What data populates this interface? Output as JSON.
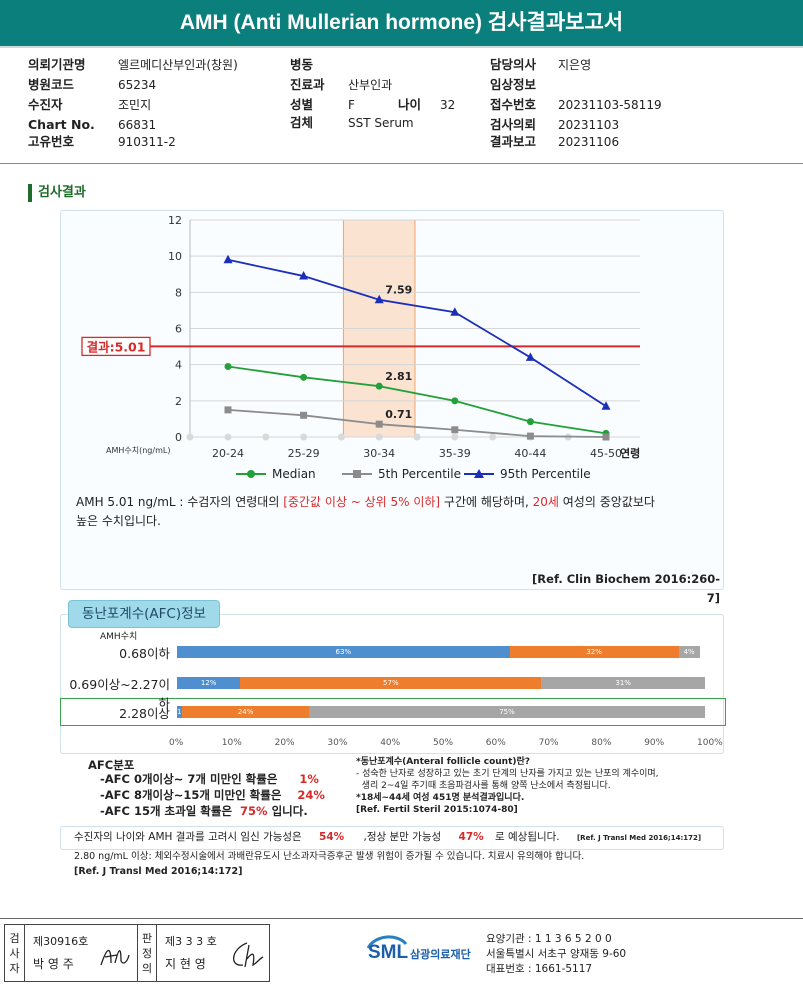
{
  "title": "AMH (Anti Mullerian hormone) 검사결과보고서",
  "info": {
    "col1": [
      {
        "label": "의뢰기관명",
        "value": "엘르메디산부인과(창원)"
      },
      {
        "label": "병원코드",
        "value": "65234"
      },
      {
        "label": "수진자",
        "value": "조민지"
      },
      {
        "label": "Chart No.",
        "value": "66831"
      },
      {
        "label": "고유번호",
        "value": "910311-2"
      }
    ],
    "col2": [
      {
        "label": "병동",
        "value": ""
      },
      {
        "label": "진료과",
        "value": "산부인과"
      },
      {
        "label": "성별",
        "value": "F"
      },
      {
        "label": "검체",
        "value": "SST Serum"
      }
    ],
    "age_label": "나이",
    "age_value": "32",
    "col3": [
      {
        "label": "담당의사",
        "value": "지은영"
      },
      {
        "label": "임상정보",
        "value": ""
      },
      {
        "label": "접수번호",
        "value": "20231103-58119"
      },
      {
        "label": "검사의뢰",
        "value": "20231103"
      },
      {
        "label": "결과보고",
        "value": "20231106"
      }
    ]
  },
  "section_title": "검사결과",
  "chart_data": {
    "type": "line",
    "categories": [
      "20-24",
      "25-29",
      "30-34",
      "35-39",
      "40-44",
      "45-50"
    ],
    "x_axis_suffix": "연령",
    "y_unit_label": "AMH수치(ng/mL)",
    "ylim": [
      0,
      12
    ],
    "y_ticks": [
      "0",
      "2",
      "4",
      "6",
      "8",
      "10",
      "12"
    ],
    "highlight_category": "30-34",
    "result_line": {
      "label": "결과:5.01",
      "value": 5.01,
      "color": "#d62b2b"
    },
    "series": [
      {
        "name": "Median",
        "values": [
          3.9,
          3.3,
          2.81,
          2.0,
          0.85,
          0.2
        ],
        "color": "#22a03a",
        "marker": "circle"
      },
      {
        "name": "5th Percentile",
        "values": [
          1.5,
          1.2,
          0.71,
          0.4,
          0.05,
          0.0
        ],
        "color": "#8c8c8c",
        "marker": "square"
      },
      {
        "name": "95th Percentile",
        "values": [
          9.8,
          8.9,
          7.59,
          6.9,
          4.4,
          1.7
        ],
        "color": "#1c2fb8",
        "marker": "triangle"
      }
    ],
    "data_labels": [
      {
        "series": 0,
        "index": 2,
        "text": "2.81"
      },
      {
        "series": 1,
        "index": 2,
        "text": "0.71"
      },
      {
        "series": 2,
        "index": 2,
        "text": "7.59"
      }
    ],
    "grid": true,
    "legend": "bottom"
  },
  "interpretation": {
    "prefix": "AMH   5.01 ng/mL : 수검자의 연령대의 ",
    "range": "[중간값 이상 ~ 상위 5% 이하]",
    "mid": "  구간에 해당하며, ",
    "age": "20세",
    "suffix": " 여성의 중앙값보다",
    "line2": "높은 수치입니다.",
    "ref": "[Ref. Clin Biochem 2016:260-7]"
  },
  "afc": {
    "tab": "동난포계수(AFC)정보",
    "amh_header": "AMH수치",
    "rows": [
      {
        "label": "0.68이하",
        "segments": [
          {
            "pct": 63,
            "text": "63%",
            "color": "#4f8fd0"
          },
          {
            "pct": 32,
            "text": "32%",
            "color": "#ef7d2e"
          },
          {
            "pct": 4,
            "text": "4%",
            "color": "#a6a6a6"
          }
        ]
      },
      {
        "label": "0.69이상~2.27이하",
        "segments": [
          {
            "pct": 12,
            "text": "12%",
            "color": "#4f8fd0"
          },
          {
            "pct": 57,
            "text": "57%",
            "color": "#ef7d2e"
          },
          {
            "pct": 31,
            "text": "31%",
            "color": "#a6a6a6"
          }
        ]
      },
      {
        "label": "2.28이상",
        "segments": [
          {
            "pct": 1,
            "text": "1%",
            "color": "#4f8fd0"
          },
          {
            "pct": 24,
            "text": "24%",
            "color": "#ef7d2e"
          },
          {
            "pct": 75,
            "text": "75%",
            "color": "#a6a6a6"
          }
        ]
      }
    ],
    "x_ticks": [
      "0%",
      "10%",
      "20%",
      "30%",
      "40%",
      "50%",
      "60%",
      "70%",
      "80%",
      "90%",
      "100%"
    ],
    "dist_title": "AFC분포",
    "dist": [
      {
        "text": "-AFC  0개이상~ 7개 미만인 확률은",
        "pct": "1%"
      },
      {
        "text": "-AFC  8개이상~15개 미만인 확률은",
        "pct": "24%"
      },
      {
        "text": "-AFC  15개 초과일 확률은",
        "pct": "75%",
        "tail": " 입니다."
      }
    ],
    "notes": [
      "*동난포계수(Anteral follicle count)란?",
      "- 성숙한 난자로 성장하고 있는 초기 단계의 난자를 가지고 있는 난포의 계수이며,",
      "  생리 2~4일 주기때 초음파검사를 통해 양쪽 난소에서 측정됩니다.",
      "*18세~44세 여성 451명 분석결과입니다.",
      "[Ref. Fertil Steril 2015:1074-80]"
    ]
  },
  "pregnancy": {
    "prefix": "수진자의 나이와 AMH 결과를 고려시 임신 가능성은",
    "preg_pct": "54%",
    "mid": ",정상 분만 가능성",
    "birth_pct": "47%",
    "suffix": "로 예상됩니다.",
    "ref": "[Ref. J Transl Med 2016;14:172]"
  },
  "warning": {
    "line": "2.80  ng/mL  이상: 체외수정시술에서 과배란유도시 난소과자극증후군 발생 위험이 증가될 수 있습니다. 치료시 유의해야 합니다.",
    "ref": "[Ref. J Transl Med 2016;14:172]"
  },
  "footer": {
    "examiner_label": "검사자",
    "examiner_no": "제30916호",
    "examiner_name": "박 영 주",
    "confirm_label": "판정의",
    "confirm_no": "제3 3 3 호",
    "confirm_name": "지 현 영",
    "logo_text": "SML",
    "org_name": "삼광의료재단",
    "code": "요양기관 : 1 1 3 6 5 2 0 0",
    "address": "서울특별시 서초구 양재동 9-60",
    "phone": "대표번호 : 1661-5117"
  }
}
